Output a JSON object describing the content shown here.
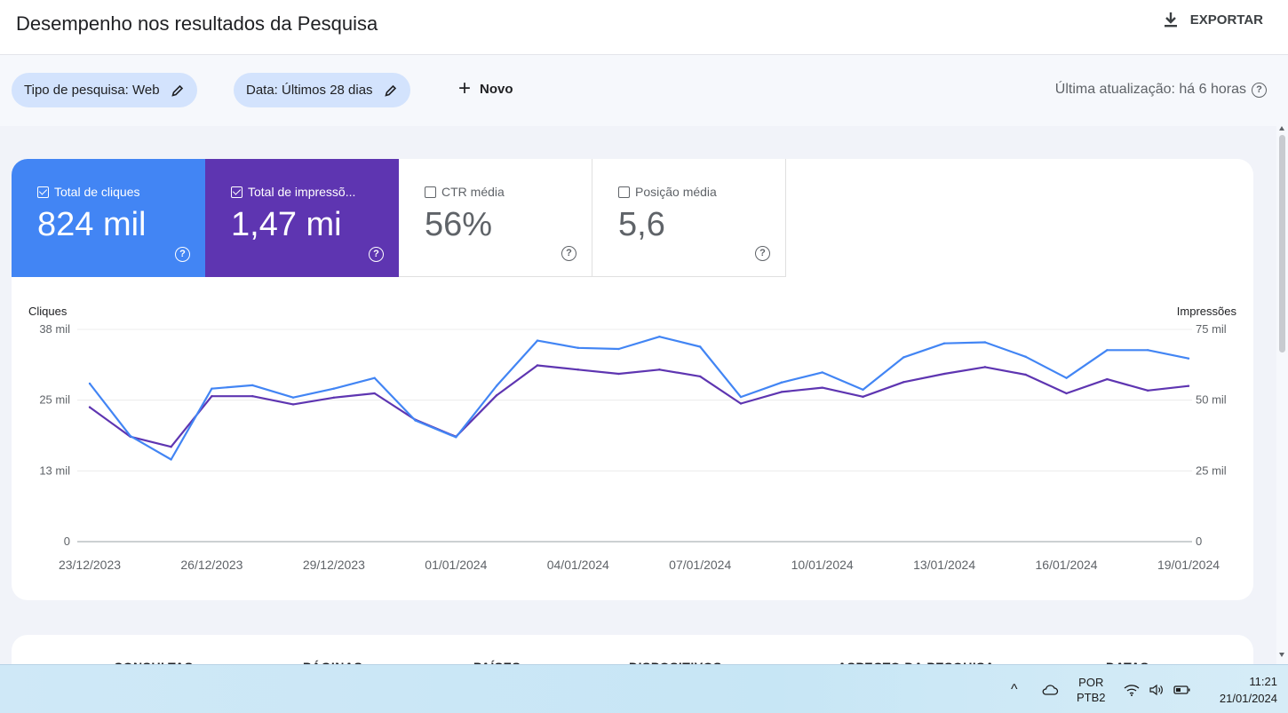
{
  "header": {
    "title": "Desempenho nos resultados da Pesquisa",
    "export_label": "EXPORTAR"
  },
  "filters": {
    "chips": [
      {
        "label": "Tipo de pesquisa: Web"
      },
      {
        "label": "Data: Últimos 28 dias"
      }
    ],
    "new_label": "Novo",
    "last_update": "Última atualização: há 6 horas"
  },
  "metrics": [
    {
      "label": "Total de cliques",
      "value": "824 mil",
      "checked": true,
      "color": "#4285f4"
    },
    {
      "label": "Total de impressõ...",
      "value": "1,47 mi",
      "checked": true,
      "color": "#5e35b1"
    },
    {
      "label": "CTR média",
      "value": "56%",
      "checked": false
    },
    {
      "label": "Posição média",
      "value": "5,6",
      "checked": false
    }
  ],
  "chart_data": {
    "type": "line",
    "left_axis_label": "Cliques",
    "right_axis_label": "Impressões",
    "left_ticks": [
      "0",
      "13 mil",
      "25 mil",
      "38 mil"
    ],
    "right_ticks": [
      "0",
      "25 mil",
      "50 mil",
      "75 mil"
    ],
    "left_ylim": [
      0,
      38000
    ],
    "right_ylim": [
      0,
      75000
    ],
    "x_tick_labels": [
      "23/12/2023",
      "26/12/2023",
      "29/12/2023",
      "01/01/2024",
      "04/01/2024",
      "07/01/2024",
      "10/01/2024",
      "13/01/2024",
      "16/01/2024",
      "19/01/2024"
    ],
    "x": [
      "23/12/2023",
      "24/12/2023",
      "25/12/2023",
      "26/12/2023",
      "27/12/2023",
      "28/12/2023",
      "29/12/2023",
      "30/12/2023",
      "31/12/2023",
      "01/01/2024",
      "02/01/2024",
      "03/01/2024",
      "04/01/2024",
      "05/01/2024",
      "06/01/2024",
      "07/01/2024",
      "08/01/2024",
      "09/01/2024",
      "10/01/2024",
      "11/01/2024",
      "12/01/2024",
      "13/01/2024",
      "14/01/2024",
      "15/01/2024",
      "16/01/2024",
      "17/01/2024",
      "18/01/2024",
      "19/01/2024"
    ],
    "series": [
      {
        "name": "Total de cliques",
        "axis": "left",
        "color": "#4285f4",
        "values": [
          28300,
          18900,
          14700,
          27400,
          28000,
          25800,
          27400,
          29300,
          21700,
          18700,
          27900,
          36000,
          34700,
          34500,
          36700,
          34900,
          25900,
          28500,
          30300,
          27200,
          33000,
          35500,
          35700,
          33100,
          29300,
          34300,
          34300,
          32800
        ]
      },
      {
        "name": "Total de impressões",
        "axis": "right",
        "color": "#5e35b1",
        "values": [
          47500,
          37100,
          33500,
          51400,
          51400,
          48500,
          50900,
          52400,
          43100,
          37100,
          51700,
          62300,
          60800,
          59300,
          60800,
          58400,
          48800,
          52900,
          54400,
          51200,
          56400,
          59300,
          61700,
          59000,
          52400,
          57400,
          53400,
          55000
        ]
      }
    ]
  },
  "bottom_tabs": [
    "CONSULTAS",
    "PÁGINAS",
    "PAÍSES",
    "DISPOSITIVOS",
    "ASPECTO DA PESQUISA",
    "DATAS"
  ],
  "taskbar": {
    "lang_top": "POR",
    "lang_bottom": "PTB2",
    "time": "11:21",
    "date": "21/01/2024"
  }
}
